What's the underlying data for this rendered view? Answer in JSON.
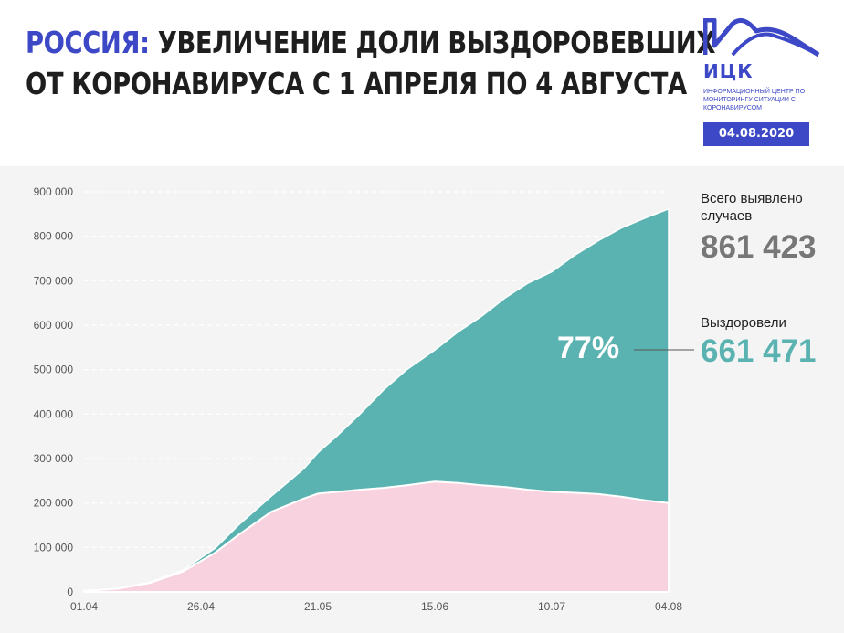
{
  "header": {
    "title_accent": "РОССИЯ:",
    "title_line1_rest": "УВЕЛИЧЕНИЕ ДОЛИ ВЫЗДОРОВЕВШИХ",
    "title_line2": "ОТ КОРОНАВИРУСА С 1 АПРЕЛЯ ПО 4 АВГУСТА"
  },
  "logo": {
    "name": "ИЦК",
    "subtitle": "ИНФОРМАЦИОННЫЙ ЦЕНТР ПО МОНИТОРИНГУ СИТУАЦИИ С КОРОНАВИРУСОМ",
    "date": "04.08.2020"
  },
  "colors": {
    "accent": "#3d48c6",
    "recovered": "#5bb3b1",
    "active": "#f8d2df",
    "total_text": "#777777"
  },
  "stats": {
    "total_label": "Всего выявлено случаев",
    "total_value": "861 423",
    "recovered_label": "Выздоровели",
    "recovered_value": "661 471",
    "percent": "77%"
  },
  "chart_data": {
    "type": "area",
    "stacked": true,
    "x_ticks": [
      "01.04",
      "26.04",
      "21.05",
      "15.06",
      "10.07",
      "04.08"
    ],
    "y_ticks": [
      "0",
      "100 000",
      "200 000",
      "300 000",
      "400 000",
      "500 000",
      "600 000",
      "700 000",
      "800 000",
      "900 000"
    ],
    "ylim": [
      0,
      900000
    ],
    "grid": "horizontal dashed",
    "x": [
      "01.04",
      "08.04",
      "15.04",
      "22.04",
      "29.04",
      "04.05",
      "11.05",
      "18.05",
      "21.05",
      "25.05",
      "30.05",
      "04.06",
      "09.06",
      "15.06",
      "20.06",
      "25.06",
      "30.06",
      "05.07",
      "10.07",
      "15.07",
      "20.07",
      "25.07",
      "30.07",
      "04.08"
    ],
    "series": [
      {
        "key": "active",
        "values": [
          2500,
          7000,
          20000,
          45000,
          88000,
          128000,
          180000,
          210000,
          221000,
          225000,
          230000,
          234000,
          240000,
          248000,
          245000,
          240000,
          236000,
          230000,
          225000,
          223000,
          220000,
          214000,
          206000,
          200000
        ]
      },
      {
        "key": "recovered",
        "values": [
          100,
          500,
          1800,
          3000,
          10000,
          22000,
          35000,
          67000,
          92000,
          125000,
          170000,
          220000,
          260000,
          296000,
          340000,
          380000,
          425000,
          465000,
          495000,
          535000,
          570000,
          605000,
          635000,
          661471
        ]
      }
    ]
  }
}
